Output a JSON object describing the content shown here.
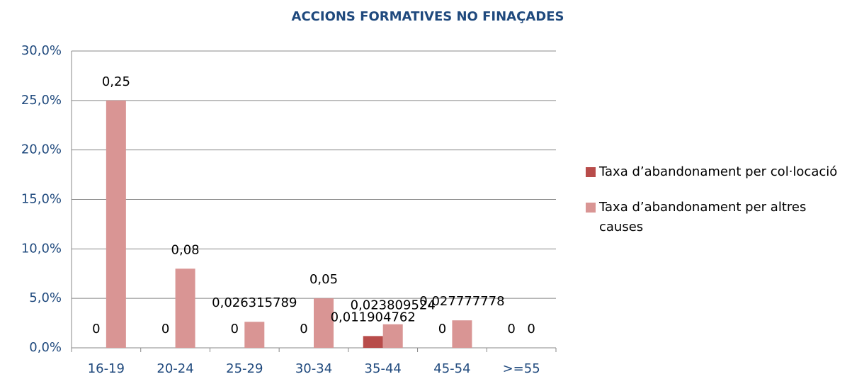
{
  "chart_data": {
    "type": "bar",
    "title": "ACCIONS FORMATIVES NO FINAÇADES",
    "categories": [
      "16-19",
      "20-24",
      "25-29",
      "30-34",
      "35-44",
      "45-54",
      ">=55"
    ],
    "series": [
      {
        "name": "Taxa d’abandonament per col·locació",
        "color": "#b84c4a",
        "values": [
          0,
          0,
          0,
          0,
          0.011904762,
          0,
          0
        ],
        "value_labels": [
          "0",
          "0",
          "0",
          "0",
          "0,011904762",
          "0",
          "0"
        ]
      },
      {
        "name": "Taxa d’abandonament per altres causes",
        "color": "#d99594",
        "values": [
          0.25,
          0.08,
          0.026315789,
          0.05,
          0.023809524,
          0.027777778,
          0
        ],
        "value_labels": [
          "0,25",
          "0,08",
          "0,026315789",
          "0,05",
          "0,023809524",
          "0,027777778",
          "0"
        ]
      }
    ],
    "ylim": [
      0,
      0.3
    ],
    "yticks": [
      {
        "value": 0,
        "label": "0,0%"
      },
      {
        "value": 0.05,
        "label": "5,0%"
      },
      {
        "value": 0.1,
        "label": "10,0%"
      },
      {
        "value": 0.15,
        "label": "15,0%"
      },
      {
        "value": 0.2,
        "label": "20,0%"
      },
      {
        "value": 0.25,
        "label": "25,0%"
      },
      {
        "value": 0.3,
        "label": "30,0%"
      }
    ],
    "grid": true,
    "legend": "right"
  }
}
